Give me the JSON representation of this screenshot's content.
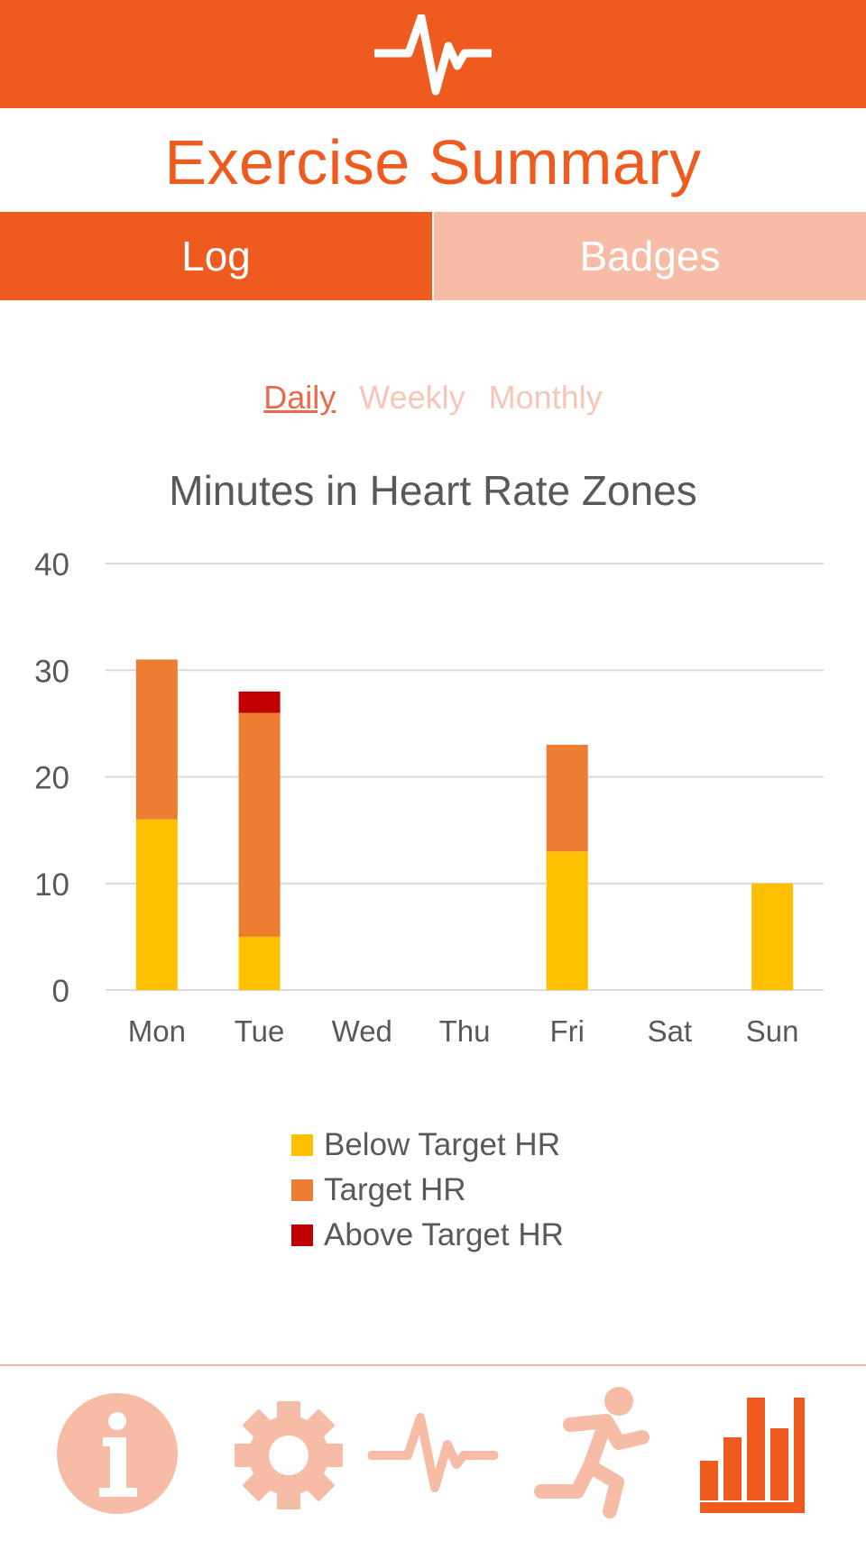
{
  "header": {
    "title": "Exercise Summary",
    "logo_icon": "heartbeat-pulse-icon",
    "color": "#EF5A1E"
  },
  "tabs": [
    {
      "label": "Log",
      "active": true
    },
    {
      "label": "Badges",
      "active": false
    }
  ],
  "period_selector": [
    {
      "label": "Daily",
      "active": true
    },
    {
      "label": "Weekly",
      "active": false
    },
    {
      "label": "Monthly",
      "active": false
    }
  ],
  "chart_data": {
    "type": "bar",
    "stacked": true,
    "title": "Minutes in Heart Rate Zones",
    "categories": [
      "Mon",
      "Tue",
      "Wed",
      "Thu",
      "Fri",
      "Sat",
      "Sun"
    ],
    "series": [
      {
        "name": "Below Target HR",
        "color": "#FFC000",
        "values": [
          16,
          5,
          0,
          0,
          13,
          0,
          10
        ]
      },
      {
        "name": "Target HR",
        "color": "#ED7D31",
        "values": [
          15,
          21,
          0,
          0,
          10,
          0,
          0
        ]
      },
      {
        "name": "Above Target HR",
        "color": "#C00000",
        "values": [
          0,
          2,
          0,
          0,
          0,
          0,
          0
        ]
      }
    ],
    "yticks": [
      "0",
      "10",
      "20",
      "30",
      "40"
    ],
    "ylim": [
      0,
      40
    ],
    "grid": true,
    "legend_position": "bottom"
  },
  "bottom_nav": [
    {
      "icon": "info-icon",
      "active": false
    },
    {
      "icon": "settings-gear-icon",
      "active": false
    },
    {
      "icon": "heartbeat-icon",
      "active": false
    },
    {
      "icon": "running-person-icon",
      "active": false
    },
    {
      "icon": "bar-chart-icon",
      "active": true
    }
  ]
}
